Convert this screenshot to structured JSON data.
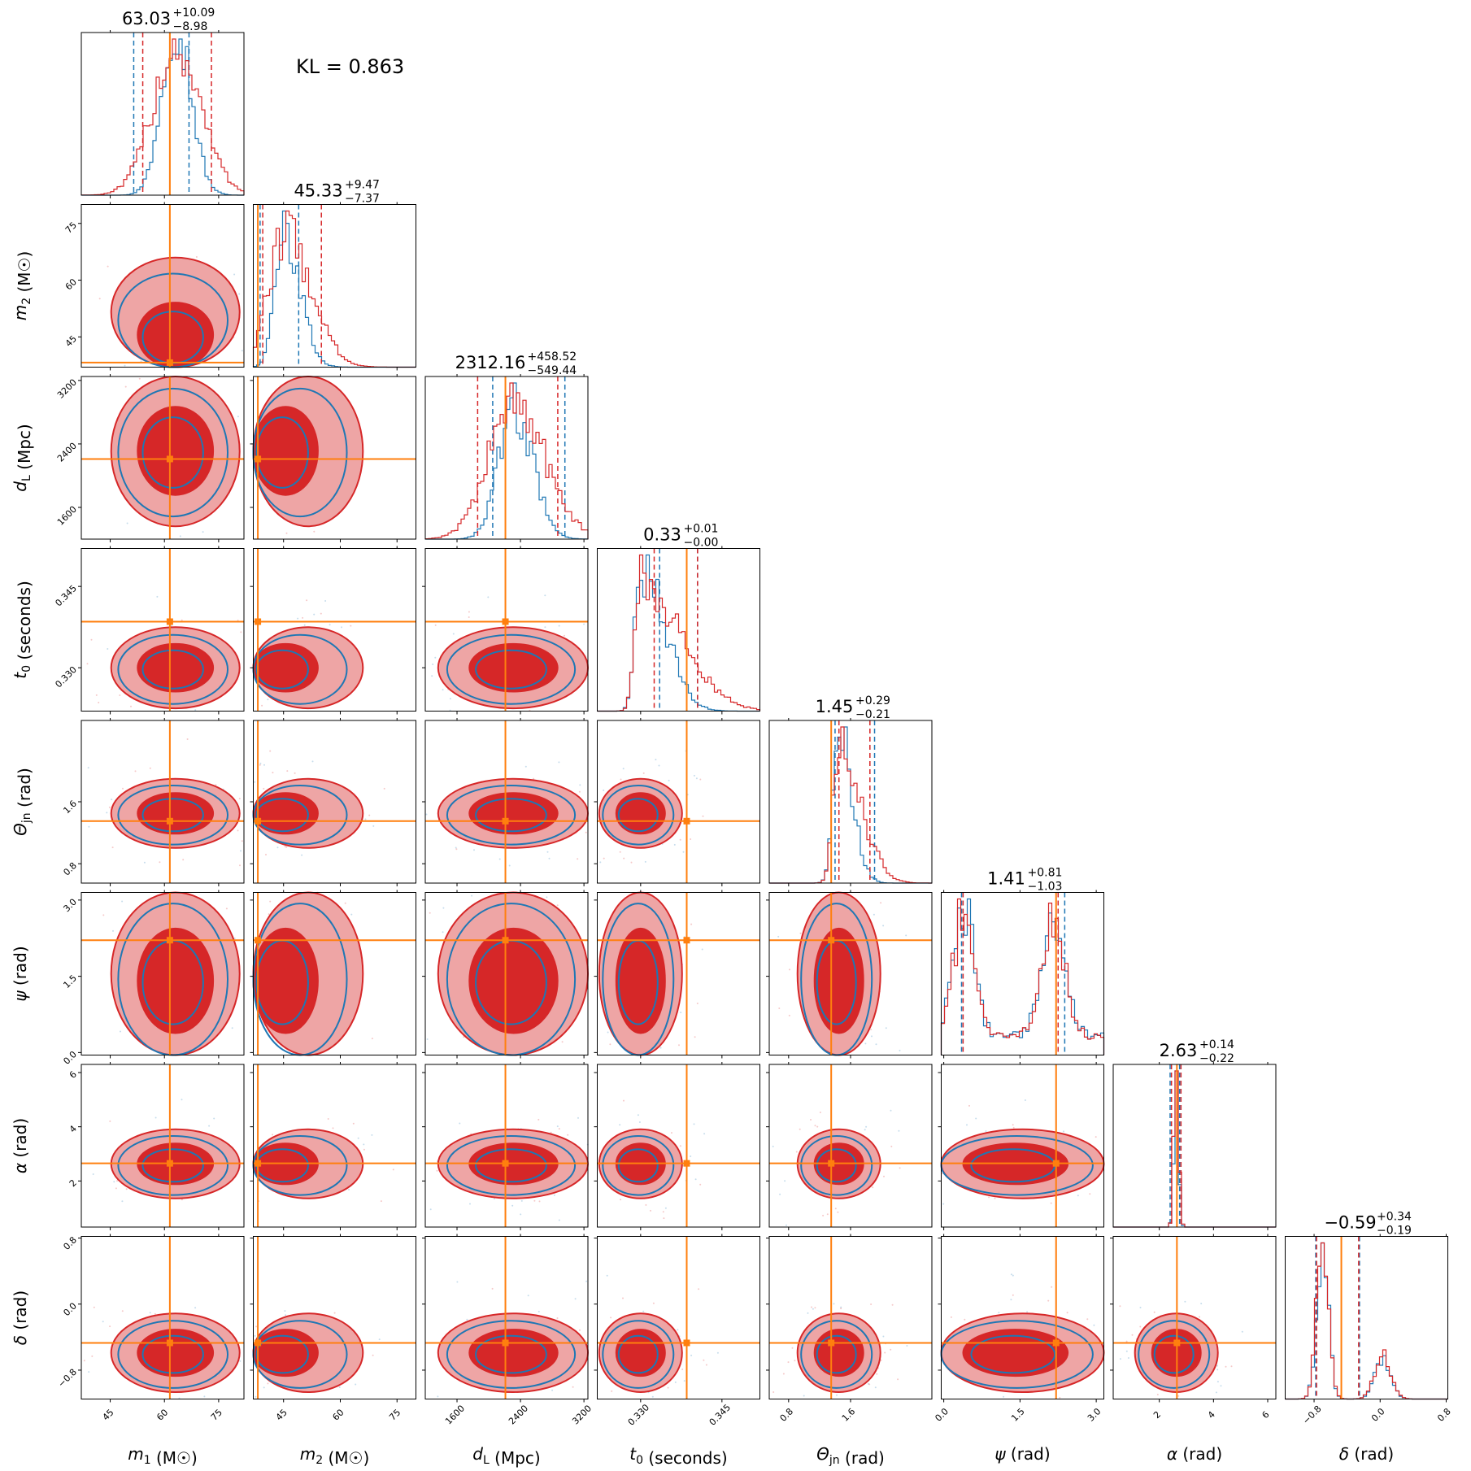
{
  "colors": {
    "series_a": "#1f77b4",
    "series_b": "#d62728",
    "truth": "#ff7f0e",
    "fill_inner": "#d62728",
    "fill_outer": "#eea5a5"
  },
  "annotation": "KL = 0.863",
  "chart_data": {
    "type": "corner",
    "grid": false,
    "legend": "none",
    "parameters": [
      {
        "label_html": "m1 (M☉)",
        "label_main": "m",
        "label_sub": "1",
        "label_unit": " (M☉)",
        "range": [
          37,
          82
        ],
        "ticks": [
          45,
          60,
          75
        ],
        "tick_labels": [
          "45",
          "60",
          "75"
        ],
        "truth": 61.5,
        "median": 63.03,
        "plus": "+10.09",
        "minus": "−8.98",
        "median_text": "63.03",
        "q_a": [
          51.5,
          62.0,
          66.8
        ],
        "q_b": [
          54.0,
          63.0,
          73.0
        ]
      },
      {
        "label_main": "m",
        "label_sub": "2",
        "label_unit": " (M☉)",
        "range": [
          37,
          80
        ],
        "ticks": [
          45,
          60,
          75
        ],
        "tick_labels": [
          "45",
          "60",
          "75"
        ],
        "truth": 38.2,
        "median": 45.33,
        "plus": "+9.47",
        "minus": "−7.37",
        "median_text": "45.33",
        "q_a": [
          38.8,
          44.0,
          49.0
        ],
        "q_b": [
          39.5,
          45.3,
          55.0
        ]
      },
      {
        "label_main": "d",
        "label_sub": "L",
        "label_unit": " (Mpc)",
        "range": [
          1200,
          3250
        ],
        "ticks": [
          1600,
          2400,
          3200
        ],
        "tick_labels": [
          "1600",
          "2400",
          "3200"
        ],
        "truth": 2210,
        "median": 2312.16,
        "plus": "+458.52",
        "minus": "−549.44",
        "median_text": "2312.16",
        "q_a": [
          2050,
          2750,
          2960
        ],
        "q_b": [
          1860,
          2400,
          2870
        ]
      },
      {
        "label_main": "t",
        "label_sub": "0",
        "label_unit": " (seconds)",
        "range": [
          0.322,
          0.352
        ],
        "ticks": [
          0.33,
          0.345
        ],
        "tick_labels": [
          "0.330",
          "0.345"
        ],
        "truth": 0.3385,
        "median": 0.33,
        "plus": "+0.01",
        "minus": "−0.00",
        "median_text": "0.33",
        "q_a": [
          0.3335,
          0.3345,
          0.3405
        ],
        "q_b": [
          0.3325,
          0.334,
          0.3405
        ]
      },
      {
        "label_main": "Θ",
        "label_sub": "jn",
        "label_unit": " (rad)",
        "range": [
          0.55,
          2.65
        ],
        "ticks": [
          0.8,
          1.6
        ],
        "tick_labels": [
          "0.8",
          "1.6"
        ],
        "truth": 1.35,
        "median": 1.45,
        "plus": "+0.29",
        "minus": "−0.21",
        "median_text": "1.45",
        "q_a": [
          1.4,
          1.5,
          1.91
        ],
        "q_b": [
          1.45,
          1.52,
          1.85
        ]
      },
      {
        "label_main": "ψ",
        "label_sub": "",
        "label_unit": " (rad)",
        "range": [
          -0.05,
          3.15
        ],
        "ticks": [
          0.0,
          1.5,
          3.0
        ],
        "tick_labels": [
          "0.0",
          "1.5",
          "3.0"
        ],
        "truth": 2.21,
        "median": 1.41,
        "plus": "+0.81",
        "minus": "−1.03",
        "median_text": "1.41",
        "q_a": [
          0.35,
          1.41,
          2.38
        ],
        "q_b": [
          0.38,
          1.41,
          2.25
        ]
      },
      {
        "label_main": "α",
        "label_sub": "",
        "label_unit": " (rad)",
        "range": [
          0.3,
          6.3
        ],
        "ticks": [
          2,
          4,
          6
        ],
        "tick_labels": [
          "2",
          "4",
          "6"
        ],
        "truth": 2.65,
        "median": 2.63,
        "plus": "+0.14",
        "minus": "−0.22",
        "median_text": "2.63",
        "q_a": [
          2.4,
          2.63,
          2.75
        ],
        "q_b": [
          2.45,
          2.63,
          2.8
        ]
      },
      {
        "label_main": "δ",
        "label_sub": "",
        "label_unit": " (rad)",
        "range": [
          -1.15,
          0.82
        ],
        "ticks": [
          -0.8,
          0.0,
          0.8
        ],
        "tick_labels": [
          "−0.8",
          "0.0",
          "0.8"
        ],
        "truth": -0.47,
        "median": -0.59,
        "plus": "+0.34",
        "minus": "−0.19",
        "median_text": "−0.59",
        "q_a": [
          -0.78,
          -0.59,
          -0.25
        ],
        "q_b": [
          -0.77,
          -0.59,
          -0.26
        ]
      }
    ]
  }
}
